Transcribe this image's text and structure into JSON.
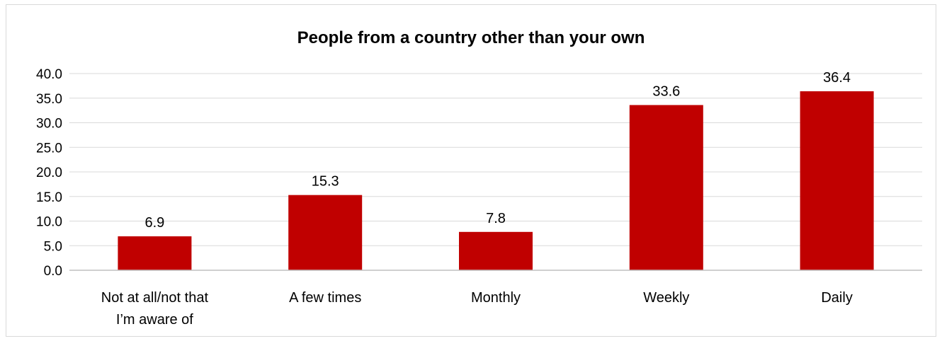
{
  "chart_data": {
    "type": "bar",
    "title": "People from a country other than your own",
    "categories": [
      "Not at all/not that I’m aware of",
      "A few times",
      "Monthly",
      "Weekly",
      "Daily"
    ],
    "category_label_lines": [
      [
        "Not at all/not that",
        "I’m aware of"
      ],
      [
        "A few times"
      ],
      [
        "Monthly"
      ],
      [
        "Weekly"
      ],
      [
        "Daily"
      ]
    ],
    "values": [
      6.9,
      15.3,
      7.8,
      33.6,
      36.4
    ],
    "data_labels": [
      "6.9",
      "15.3",
      "7.8",
      "33.6",
      "36.4"
    ],
    "y_ticks": [
      "0.0",
      "5.0",
      "10.0",
      "15.0",
      "20.0",
      "25.0",
      "30.0",
      "35.0",
      "40.0"
    ],
    "ylim": [
      0,
      40
    ],
    "y_tick_step": 5,
    "xlabel": "",
    "ylabel": "",
    "grid": true,
    "legend": "none",
    "colors": {
      "bar": "#c00000",
      "grid": "#d9d9d9",
      "axis": "#bfbfbf"
    }
  }
}
